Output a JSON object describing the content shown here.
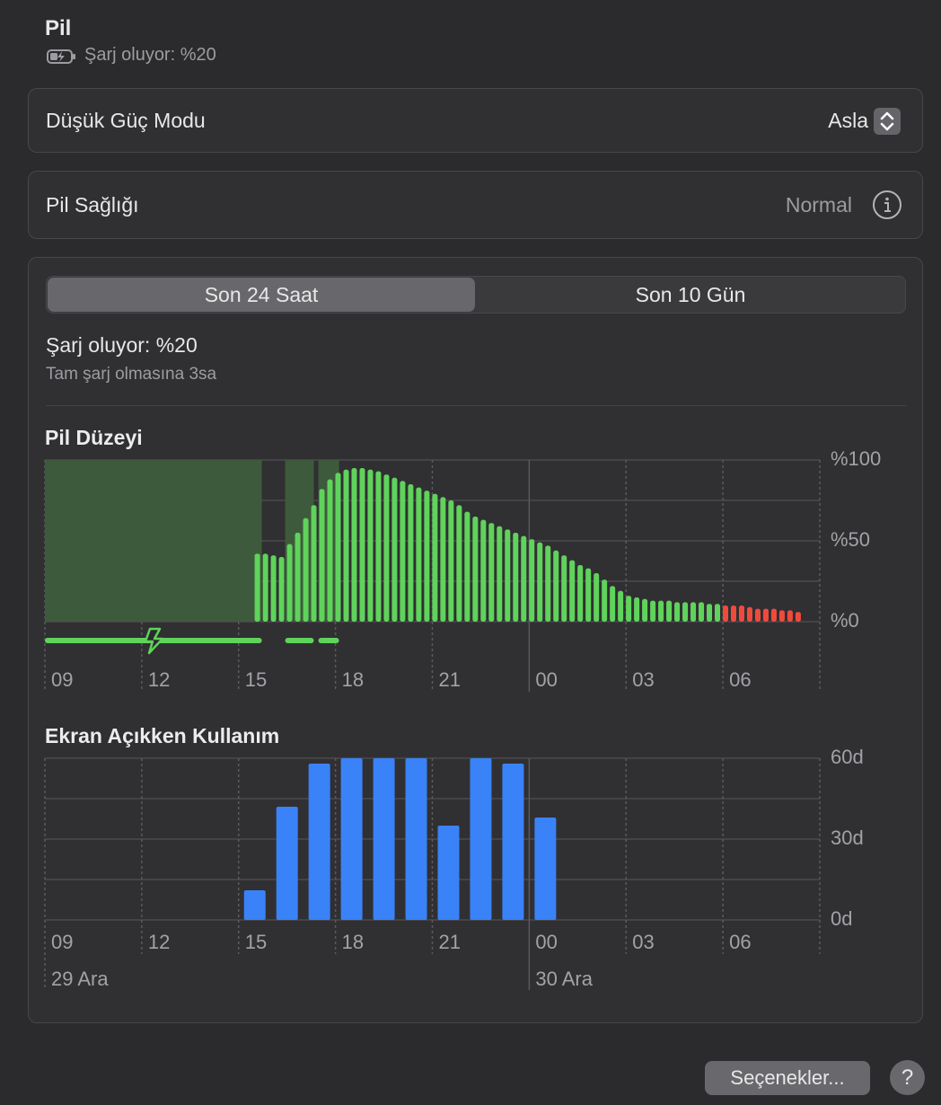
{
  "header": {
    "title": "Pil",
    "subtitle": "Şarj oluyor: %20"
  },
  "low_power": {
    "label": "Düşük Güç Modu",
    "value": "Asla"
  },
  "health": {
    "label": "Pil Sağlığı",
    "value": "Normal"
  },
  "tabs": [
    "Son 24 Saat",
    "Son 10 Gün"
  ],
  "status": {
    "title": "Şarj oluyor: %20",
    "detail": "Tam şarj olmasına 3sa"
  },
  "chart_data": [
    {
      "type": "bar",
      "title": "Pil Düzeyi",
      "x": [
        6.58,
        6.83,
        7.08,
        7.33,
        7.58,
        7.83,
        8.08,
        8.33,
        8.58,
        8.83,
        9.08,
        9.33,
        9.58,
        9.83,
        10.08,
        10.33,
        10.58,
        10.83,
        11.08,
        11.33,
        11.58,
        11.83,
        12.08,
        12.33,
        12.58,
        12.83,
        13.08,
        13.33,
        13.58,
        13.83,
        14.08,
        14.33,
        14.58,
        14.83,
        15.08,
        15.33,
        15.58,
        15.83,
        16.08,
        16.33,
        16.58,
        16.83,
        17.08,
        17.33,
        17.58,
        17.83,
        18.08,
        18.33,
        18.58,
        18.83,
        19.08,
        19.33,
        19.58,
        19.83,
        20.08,
        20.33,
        20.58,
        20.83,
        21.08,
        21.33,
        21.58,
        21.83,
        22.08,
        22.33,
        22.58,
        22.83,
        23.08,
        23.33
      ],
      "values": [
        42,
        42,
        41,
        40,
        48,
        55,
        64,
        72,
        82,
        88,
        92,
        94,
        95,
        95,
        94,
        93,
        91,
        89,
        87,
        85,
        83,
        81,
        79,
        77,
        75,
        72,
        68,
        65,
        63,
        61,
        59,
        57,
        55,
        53,
        51,
        49,
        47,
        44,
        41,
        38,
        35,
        33,
        30,
        26,
        22,
        19,
        16,
        15,
        14,
        13,
        13,
        13,
        12,
        12,
        12,
        12,
        11,
        11,
        10,
        10,
        10,
        9,
        8,
        8,
        8,
        7,
        7,
        6
      ],
      "colors": [
        "#5fd35b",
        "#5fd35b",
        "#5fd35b",
        "#5fd35b",
        "#5fd35b",
        "#5fd35b",
        "#5fd35b",
        "#5fd35b",
        "#5fd35b",
        "#5fd35b",
        "#5fd35b",
        "#5fd35b",
        "#5fd35b",
        "#5fd35b",
        "#5fd35b",
        "#5fd35b",
        "#5fd35b",
        "#5fd35b",
        "#5fd35b",
        "#5fd35b",
        "#5fd35b",
        "#5fd35b",
        "#5fd35b",
        "#5fd35b",
        "#5fd35b",
        "#5fd35b",
        "#5fd35b",
        "#5fd35b",
        "#5fd35b",
        "#5fd35b",
        "#5fd35b",
        "#5fd35b",
        "#5fd35b",
        "#5fd35b",
        "#5fd35b",
        "#5fd35b",
        "#5fd35b",
        "#5fd35b",
        "#5fd35b",
        "#5fd35b",
        "#5fd35b",
        "#5fd35b",
        "#5fd35b",
        "#5fd35b",
        "#5fd35b",
        "#5fd35b",
        "#5fd35b",
        "#5fd35b",
        "#5fd35b",
        "#5fd35b",
        "#5fd35b",
        "#5fd35b",
        "#5fd35b",
        "#5fd35b",
        "#5fd35b",
        "#5fd35b",
        "#5fd35b",
        "#5fd35b",
        "#ef4b3d",
        "#ef4b3d",
        "#ef4b3d",
        "#ef4b3d",
        "#ef4b3d",
        "#ef4b3d",
        "#ef4b3d",
        "#ef4b3d",
        "#ef4b3d",
        "#ef4b3d"
      ],
      "charging_periods": [
        [
          0,
          6.72
        ],
        [
          7.44,
          8.33
        ],
        [
          8.47,
          9.11
        ]
      ],
      "xlim": [
        0,
        24
      ],
      "xticks": [
        {
          "value": 0,
          "label": "09"
        },
        {
          "value": 3,
          "label": "12"
        },
        {
          "value": 6,
          "label": "15"
        },
        {
          "value": 9,
          "label": "18"
        },
        {
          "value": 12,
          "label": "21"
        },
        {
          "value": 15,
          "label": "00"
        },
        {
          "value": 18,
          "label": "03"
        },
        {
          "value": 21,
          "label": "06"
        },
        24
      ],
      "ylim": [
        0,
        100
      ],
      "yticks": [
        {
          "value": 0,
          "label": "%0"
        },
        {
          "value": 50,
          "label": "%50"
        },
        {
          "value": 100,
          "label": "%100"
        }
      ],
      "grid_lines": [
        0,
        25,
        50,
        75,
        100
      ],
      "day_start": 15
    },
    {
      "type": "bar",
      "title": "Ekran Açıkken Kullanım",
      "x": [
        6,
        7,
        8,
        9,
        10,
        11,
        12,
        13,
        14,
        15
      ],
      "values": [
        11,
        42,
        58,
        60,
        60,
        60,
        35,
        60,
        58,
        38
      ],
      "color": "#3a82f7",
      "xlim": [
        0,
        24
      ],
      "xticks": [
        {
          "value": 0,
          "label": "09"
        },
        {
          "value": 3,
          "label": "12"
        },
        {
          "value": 6,
          "label": "15"
        },
        {
          "value": 9,
          "label": "18"
        },
        {
          "value": 12,
          "label": "21"
        },
        {
          "value": 15,
          "label": "00"
        },
        {
          "value": 18,
          "label": "03"
        },
        {
          "value": 21,
          "label": "06"
        },
        24
      ],
      "ylim": [
        0,
        60
      ],
      "yticks": [
        {
          "value": 0,
          "label": "0d"
        },
        {
          "value": 30,
          "label": "30d"
        },
        {
          "value": 60,
          "label": "60d"
        }
      ],
      "grid_lines": [
        0,
        15,
        30,
        45,
        60
      ],
      "date_labels": [
        {
          "value": 0,
          "label": "29 Ara"
        },
        {
          "value": 15,
          "label": "30 Ara"
        }
      ]
    }
  ],
  "buttons": {
    "options": "Seçenekler...",
    "help": "?"
  }
}
